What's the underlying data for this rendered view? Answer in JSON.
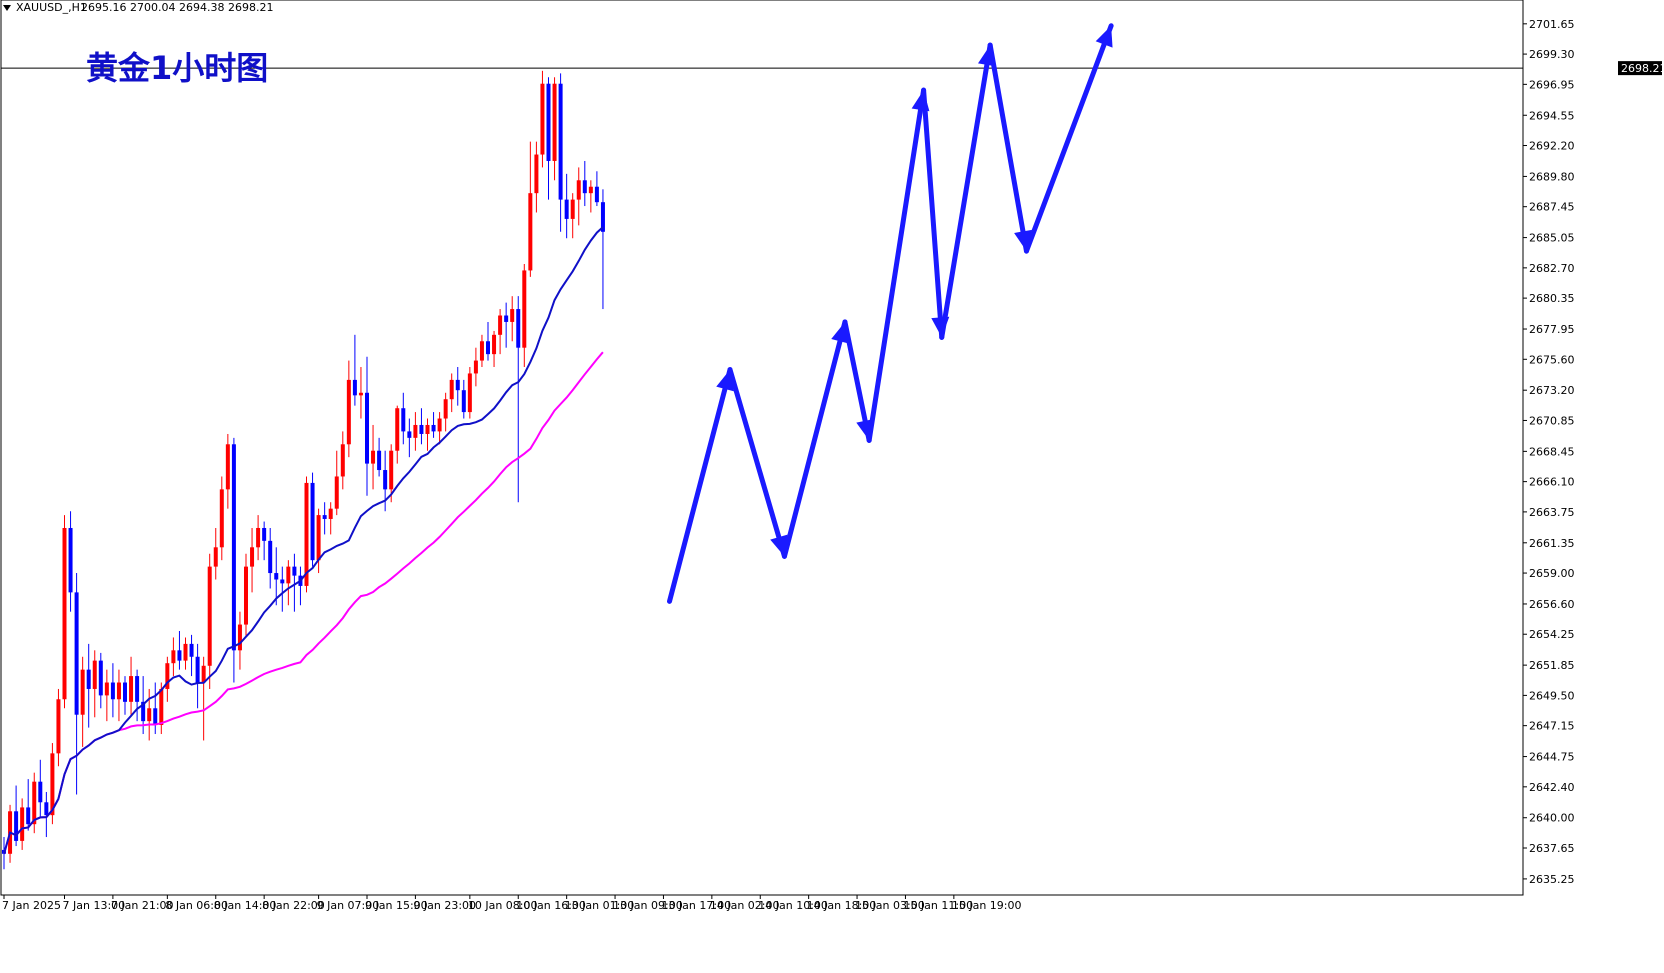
{
  "header": {
    "symbol": "XAUUSD_,H1",
    "ohlc": "2695.16 2700.04 2694.38 2698.21"
  },
  "title": "黄金1小时图",
  "current_price": "2698.21",
  "colors": {
    "bull": "#ff0000",
    "bear": "#0000ff",
    "ma_fast": "#1010c8",
    "ma_slow": "#ff00ff",
    "arrows": "#1a1aff",
    "price_tag_bg": "#000000"
  },
  "chart_data": {
    "type": "line",
    "title": "黄金1小时图",
    "xlabel": "",
    "ylabel": "",
    "ylim": [
      2634.0,
      2703.5
    ],
    "y_ticks": [
      "2701.65",
      "2699.30",
      "2696.95",
      "2694.55",
      "2692.20",
      "2689.80",
      "2687.45",
      "2685.05",
      "2682.70",
      "2680.35",
      "2677.95",
      "2675.60",
      "2673.20",
      "2670.85",
      "2668.45",
      "2666.10",
      "2663.75",
      "2661.35",
      "2659.00",
      "2656.60",
      "2654.25",
      "2651.85",
      "2649.50",
      "2647.15",
      "2644.75",
      "2642.40",
      "2640.00",
      "2637.65",
      "2635.25"
    ],
    "x_labels": [
      {
        "label": "7 Jan 2025",
        "i": 0
      },
      {
        "label": "7 Jan 13:00",
        "i": 10
      },
      {
        "label": "7 Jan 21:00",
        "i": 18
      },
      {
        "label": "8 Jan 06:00",
        "i": 27
      },
      {
        "label": "8 Jan 14:00",
        "i": 35
      },
      {
        "label": "8 Jan 22:00",
        "i": 43
      },
      {
        "label": "9 Jan 07:00",
        "i": 52
      },
      {
        "label": "9 Jan 15:00",
        "i": 60
      },
      {
        "label": "9 Jan 23:00",
        "i": 68
      },
      {
        "label": "10 Jan 08:00",
        "i": 77
      },
      {
        "label": "10 Jan 16:00",
        "i": 85
      },
      {
        "label": "13 Jan 01:00",
        "i": 93
      },
      {
        "label": "13 Jan 09:00",
        "i": 101
      },
      {
        "label": "13 Jan 17:00",
        "i": 109
      },
      {
        "label": "14 Jan 02:00",
        "i": 117
      },
      {
        "label": "14 Jan 10:00",
        "i": 125
      },
      {
        "label": "14 Jan 18:00",
        "i": 133
      },
      {
        "label": "15 Jan 03:00",
        "i": 141
      },
      {
        "label": "15 Jan 11:00",
        "i": 149
      },
      {
        "label": "15 Jan 19:00",
        "i": 157
      }
    ],
    "ohlc": [
      [
        2637.5,
        2638.5,
        2636.0,
        2637.2
      ],
      [
        2637.2,
        2641.0,
        2636.5,
        2640.5
      ],
      [
        2640.5,
        2642.5,
        2637.8,
        2638.2
      ],
      [
        2638.2,
        2641.5,
        2637.5,
        2640.8
      ],
      [
        2640.8,
        2643.0,
        2639.0,
        2639.5
      ],
      [
        2639.5,
        2643.5,
        2638.8,
        2642.8
      ],
      [
        2642.8,
        2644.5,
        2640.0,
        2641.2
      ],
      [
        2641.2,
        2642.0,
        2638.5,
        2640.2
      ],
      [
        2640.2,
        2645.8,
        2639.5,
        2645.0
      ],
      [
        2645.0,
        2650.0,
        2644.0,
        2649.2
      ],
      [
        2649.2,
        2663.5,
        2648.5,
        2662.5
      ],
      [
        2662.5,
        2663.8,
        2656.0,
        2657.5
      ],
      [
        2657.5,
        2659.0,
        2641.8,
        2648.0
      ],
      [
        2648.0,
        2652.5,
        2645.5,
        2651.5
      ],
      [
        2651.5,
        2653.5,
        2647.0,
        2650.0
      ],
      [
        2650.0,
        2653.0,
        2647.8,
        2652.2
      ],
      [
        2652.2,
        2652.8,
        2648.5,
        2649.5
      ],
      [
        2649.5,
        2651.5,
        2647.5,
        2650.5
      ],
      [
        2650.5,
        2652.0,
        2647.8,
        2649.2
      ],
      [
        2649.2,
        2651.5,
        2647.5,
        2650.5
      ],
      [
        2650.5,
        2651.0,
        2648.0,
        2649.0
      ],
      [
        2649.0,
        2652.5,
        2648.0,
        2651.0
      ],
      [
        2651.0,
        2651.5,
        2647.5,
        2649.0
      ],
      [
        2649.0,
        2651.0,
        2646.5,
        2647.5
      ],
      [
        2647.5,
        2650.0,
        2646.0,
        2648.5
      ],
      [
        2648.5,
        2650.5,
        2646.5,
        2647.2
      ],
      [
        2647.2,
        2650.5,
        2646.5,
        2650.0
      ],
      [
        2650.0,
        2652.5,
        2649.0,
        2652.0
      ],
      [
        2652.0,
        2654.0,
        2651.0,
        2653.0
      ],
      [
        2653.0,
        2654.5,
        2651.5,
        2652.2
      ],
      [
        2652.2,
        2654.0,
        2651.5,
        2653.5
      ],
      [
        2653.5,
        2654.2,
        2651.0,
        2652.5
      ],
      [
        2652.5,
        2653.5,
        2648.5,
        2650.5
      ],
      [
        2650.5,
        2652.5,
        2646.0,
        2651.8
      ],
      [
        2651.8,
        2660.5,
        2650.0,
        2659.5
      ],
      [
        2659.5,
        2662.5,
        2658.5,
        2661.0
      ],
      [
        2661.0,
        2666.5,
        2660.0,
        2665.5
      ],
      [
        2665.5,
        2669.8,
        2664.0,
        2669.0
      ],
      [
        2669.0,
        2669.5,
        2650.5,
        2653.0
      ],
      [
        2653.0,
        2656.0,
        2651.5,
        2655.0
      ],
      [
        2655.0,
        2660.5,
        2654.0,
        2659.5
      ],
      [
        2659.5,
        2662.5,
        2657.5,
        2661.0
      ],
      [
        2661.0,
        2663.5,
        2660.0,
        2662.5
      ],
      [
        2662.5,
        2663.0,
        2660.0,
        2661.5
      ],
      [
        2661.5,
        2662.5,
        2657.8,
        2659.0
      ],
      [
        2659.0,
        2661.0,
        2656.5,
        2658.5
      ],
      [
        2658.5,
        2659.5,
        2656.0,
        2658.2
      ],
      [
        2658.2,
        2660.0,
        2656.5,
        2659.5
      ],
      [
        2659.5,
        2660.5,
        2656.0,
        2658.8
      ],
      [
        2658.8,
        2659.5,
        2656.5,
        2658.0
      ],
      [
        2658.0,
        2666.5,
        2657.5,
        2666.0
      ],
      [
        2666.0,
        2666.8,
        2659.5,
        2660.0
      ],
      [
        2660.0,
        2664.0,
        2659.0,
        2663.5
      ],
      [
        2663.5,
        2664.5,
        2662.0,
        2663.2
      ],
      [
        2663.2,
        2664.5,
        2662.0,
        2664.0
      ],
      [
        2664.0,
        2668.5,
        2663.5,
        2666.5
      ],
      [
        2666.5,
        2670.0,
        2665.5,
        2669.0
      ],
      [
        2669.0,
        2675.5,
        2668.0,
        2674.0
      ],
      [
        2674.0,
        2677.5,
        2672.0,
        2672.8
      ],
      [
        2672.8,
        2675.0,
        2671.0,
        2673.0
      ],
      [
        2673.0,
        2675.8,
        2665.0,
        2667.5
      ],
      [
        2667.5,
        2670.5,
        2665.5,
        2668.5
      ],
      [
        2668.5,
        2669.5,
        2666.5,
        2667.0
      ],
      [
        2667.0,
        2668.5,
        2663.8,
        2665.5
      ],
      [
        2665.5,
        2669.0,
        2664.5,
        2668.5
      ],
      [
        2668.5,
        2672.0,
        2667.5,
        2671.8
      ],
      [
        2671.8,
        2673.0,
        2669.0,
        2670.0
      ],
      [
        2670.0,
        2671.0,
        2668.0,
        2669.5
      ],
      [
        2669.5,
        2671.5,
        2668.5,
        2670.5
      ],
      [
        2670.5,
        2671.8,
        2669.0,
        2669.8
      ],
      [
        2669.8,
        2671.0,
        2668.5,
        2670.5
      ],
      [
        2670.5,
        2671.5,
        2669.5,
        2670.0
      ],
      [
        2670.0,
        2671.5,
        2669.0,
        2671.0
      ],
      [
        2671.0,
        2673.0,
        2670.0,
        2672.5
      ],
      [
        2672.5,
        2674.5,
        2671.5,
        2674.0
      ],
      [
        2674.0,
        2675.0,
        2672.0,
        2673.2
      ],
      [
        2673.2,
        2674.0,
        2671.0,
        2671.5
      ],
      [
        2671.5,
        2675.0,
        2671.0,
        2674.5
      ],
      [
        2674.5,
        2676.5,
        2673.5,
        2675.5
      ],
      [
        2675.5,
        2677.5,
        2675.0,
        2677.0
      ],
      [
        2677.0,
        2678.5,
        2675.5,
        2676.0
      ],
      [
        2676.0,
        2677.8,
        2675.0,
        2677.5
      ],
      [
        2677.5,
        2679.5,
        2676.0,
        2679.0
      ],
      [
        2679.0,
        2680.0,
        2676.5,
        2678.5
      ],
      [
        2678.5,
        2680.5,
        2677.0,
        2679.5
      ],
      [
        2679.5,
        2680.5,
        2664.5,
        2676.5
      ],
      [
        2676.5,
        2683.0,
        2675.0,
        2682.5
      ],
      [
        2682.5,
        2692.5,
        2682.0,
        2688.5
      ],
      [
        2688.5,
        2692.5,
        2687.0,
        2691.5
      ],
      [
        2691.5,
        2698.0,
        2690.5,
        2697.0
      ],
      [
        2697.0,
        2697.5,
        2688.0,
        2691.0
      ],
      [
        2691.0,
        2697.5,
        2689.5,
        2697.0
      ],
      [
        2697.0,
        2697.8,
        2685.5,
        2688.0
      ],
      [
        2688.0,
        2690.0,
        2685.0,
        2686.5
      ],
      [
        2686.5,
        2688.5,
        2685.0,
        2688.0
      ],
      [
        2688.0,
        2690.5,
        2686.0,
        2689.5
      ],
      [
        2689.5,
        2691.0,
        2687.5,
        2688.5
      ],
      [
        2688.5,
        2689.5,
        2687.0,
        2689.0
      ],
      [
        2689.0,
        2690.2,
        2687.5,
        2687.8
      ],
      [
        2687.8,
        2688.8,
        2679.5,
        2685.5
      ]
    ],
    "arrows": [
      {
        "from": {
          "i": 110,
          "y": 2656.8
        },
        "to": {
          "i": 120,
          "y": 2674.8
        }
      },
      {
        "from": {
          "i": 120,
          "y": 2674.8
        },
        "to": {
          "i": 129,
          "y": 2660.3
        }
      },
      {
        "from": {
          "i": 129,
          "y": 2660.3
        },
        "to": {
          "i": 139,
          "y": 2678.5
        }
      },
      {
        "from": {
          "i": 139,
          "y": 2678.5
        },
        "to": {
          "i": 143,
          "y": 2669.3
        }
      },
      {
        "from": {
          "i": 143,
          "y": 2669.3
        },
        "to": {
          "i": 152,
          "y": 2696.5
        }
      },
      {
        "from": {
          "i": 152,
          "y": 2696.5
        },
        "to": {
          "i": 155,
          "y": 2677.3
        }
      },
      {
        "from": {
          "i": 155,
          "y": 2677.3
        },
        "to": {
          "i": 163,
          "y": 2700.0
        }
      },
      {
        "from": {
          "i": 163,
          "y": 2700.0
        },
        "to": {
          "i": 169,
          "y": 2684.0
        }
      },
      {
        "from": {
          "i": 169,
          "y": 2684.0
        },
        "to": {
          "i": 183,
          "y": 2701.5
        }
      }
    ]
  }
}
